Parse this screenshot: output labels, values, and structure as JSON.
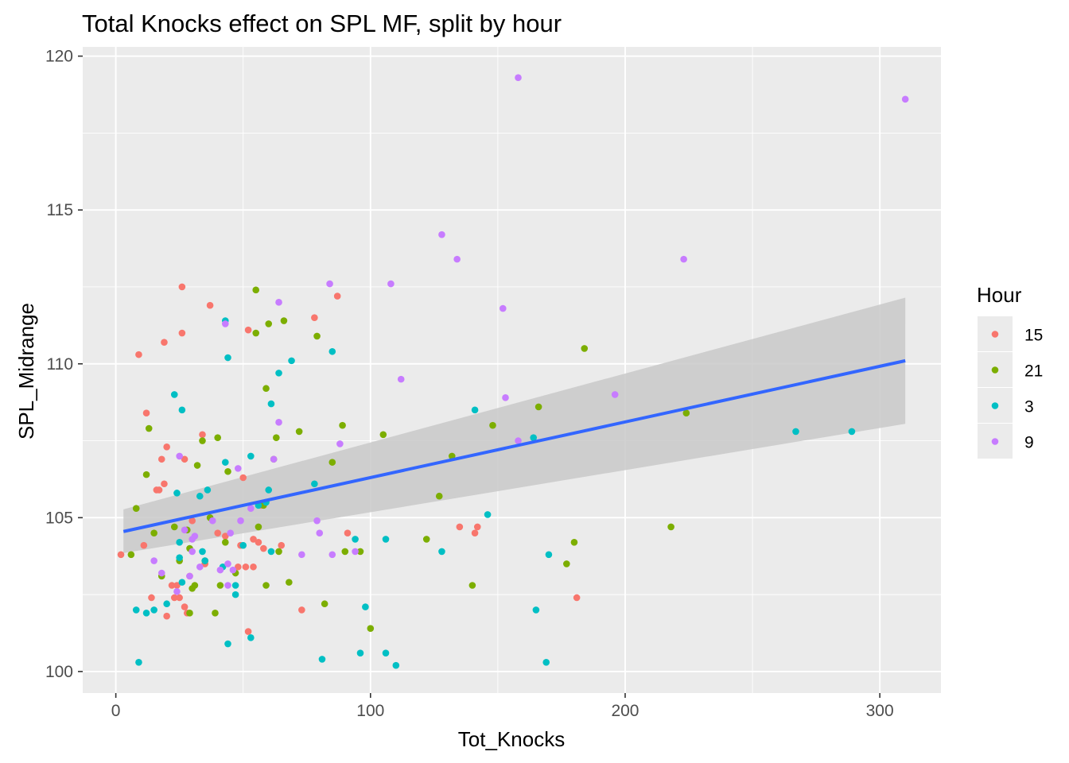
{
  "chart_data": {
    "type": "scatter",
    "title": "Total Knocks effect on SPL MF, split by hour",
    "xlabel": "Tot_Knocks",
    "ylabel": "SPL_Midrange",
    "xlim": [
      -13,
      324
    ],
    "ylim": [
      99.3,
      120.3
    ],
    "x_ticks": [
      0,
      100,
      200,
      300
    ],
    "y_ticks": [
      100,
      105,
      110,
      115,
      120
    ],
    "grid": true,
    "legend": {
      "title": "Hour",
      "position": "right"
    },
    "colors": {
      "15": "#F8766D",
      "21": "#7CAE00",
      "3": "#00BFC4",
      "9": "#C77CFF"
    },
    "panel_background": "#EBEBEB",
    "grid_color": "#FFFFFF",
    "trend_color": "#3366FF",
    "ribbon_color": "#C9C9C9",
    "trend": {
      "method": "linear",
      "x": [
        3,
        310
      ],
      "y": [
        104.55,
        110.1
      ],
      "ci_lower": [
        103.85,
        108.05
      ],
      "ci_upper": [
        105.27,
        112.15
      ]
    },
    "series": [
      {
        "name": "15",
        "points": [
          [
            2,
            103.8
          ],
          [
            9,
            110.3
          ],
          [
            11,
            104.1
          ],
          [
            12,
            108.4
          ],
          [
            14,
            102.4
          ],
          [
            16,
            105.9
          ],
          [
            17,
            105.9
          ],
          [
            18,
            106.9
          ],
          [
            19,
            110.7
          ],
          [
            19,
            106.1
          ],
          [
            20,
            107.3
          ],
          [
            20,
            101.8
          ],
          [
            22,
            102.8
          ],
          [
            23,
            102.4
          ],
          [
            24,
            102.8
          ],
          [
            25,
            102.4
          ],
          [
            26,
            112.5
          ],
          [
            26,
            111.0
          ],
          [
            27,
            106.9
          ],
          [
            27,
            102.1
          ],
          [
            28,
            101.9
          ],
          [
            29,
            103.1
          ],
          [
            30,
            104.9
          ],
          [
            34,
            107.7
          ],
          [
            35,
            103.5
          ],
          [
            37,
            111.9
          ],
          [
            40,
            104.5
          ],
          [
            43,
            104.4
          ],
          [
            48,
            103.4
          ],
          [
            49,
            104.1
          ],
          [
            50,
            106.3
          ],
          [
            51,
            103.4
          ],
          [
            52,
            101.3
          ],
          [
            52,
            111.1
          ],
          [
            54,
            104.3
          ],
          [
            54,
            103.4
          ],
          [
            56,
            104.2
          ],
          [
            57,
            105.4
          ],
          [
            58,
            104.0
          ],
          [
            65,
            104.1
          ],
          [
            73,
            102.0
          ],
          [
            78,
            111.5
          ],
          [
            87,
            112.2
          ],
          [
            91,
            104.5
          ],
          [
            135,
            104.7
          ],
          [
            141,
            104.5
          ],
          [
            142,
            104.7
          ],
          [
            181,
            102.4
          ]
        ]
      },
      {
        "name": "21",
        "points": [
          [
            6,
            103.8
          ],
          [
            8,
            105.3
          ],
          [
            12,
            106.4
          ],
          [
            13,
            107.9
          ],
          [
            15,
            104.5
          ],
          [
            18,
            103.1
          ],
          [
            23,
            104.7
          ],
          [
            25,
            103.6
          ],
          [
            28,
            104.6
          ],
          [
            29,
            104.0
          ],
          [
            29,
            101.9
          ],
          [
            30,
            102.7
          ],
          [
            31,
            102.8
          ],
          [
            32,
            106.7
          ],
          [
            34,
            107.5
          ],
          [
            35,
            103.6
          ],
          [
            37,
            105.0
          ],
          [
            39,
            101.9
          ],
          [
            40,
            107.6
          ],
          [
            41,
            102.8
          ],
          [
            43,
            104.2
          ],
          [
            44,
            106.5
          ],
          [
            47,
            103.2
          ],
          [
            55,
            112.4
          ],
          [
            55,
            111.0
          ],
          [
            56,
            104.7
          ],
          [
            58,
            105.4
          ],
          [
            59,
            102.8
          ],
          [
            59,
            109.2
          ],
          [
            60,
            111.3
          ],
          [
            62,
            106.9
          ],
          [
            63,
            107.6
          ],
          [
            64,
            103.9
          ],
          [
            66,
            111.4
          ],
          [
            68,
            102.9
          ],
          [
            72,
            107.8
          ],
          [
            79,
            110.9
          ],
          [
            82,
            102.2
          ],
          [
            85,
            106.8
          ],
          [
            89,
            108.0
          ],
          [
            90,
            103.9
          ],
          [
            96,
            103.9
          ],
          [
            100,
            101.4
          ],
          [
            105,
            107.7
          ],
          [
            122,
            104.3
          ],
          [
            127,
            105.7
          ],
          [
            132,
            107.0
          ],
          [
            140,
            102.8
          ],
          [
            148,
            108.0
          ],
          [
            166,
            108.6
          ],
          [
            177,
            103.5
          ],
          [
            180,
            104.2
          ],
          [
            184,
            110.5
          ],
          [
            218,
            104.7
          ],
          [
            224,
            108.4
          ]
        ]
      },
      {
        "name": "3",
        "points": [
          [
            8,
            102.0
          ],
          [
            9,
            100.3
          ],
          [
            12,
            101.9
          ],
          [
            15,
            102.0
          ],
          [
            20,
            102.2
          ],
          [
            23,
            109.0
          ],
          [
            24,
            105.8
          ],
          [
            25,
            104.2
          ],
          [
            25,
            103.7
          ],
          [
            26,
            102.9
          ],
          [
            26,
            108.5
          ],
          [
            33,
            105.7
          ],
          [
            34,
            103.9
          ],
          [
            35,
            103.6
          ],
          [
            36,
            105.9
          ],
          [
            42,
            103.4
          ],
          [
            43,
            111.4
          ],
          [
            43,
            106.8
          ],
          [
            44,
            100.9
          ],
          [
            44,
            110.2
          ],
          [
            47,
            102.5
          ],
          [
            47,
            102.8
          ],
          [
            50,
            104.1
          ],
          [
            53,
            101.1
          ],
          [
            53,
            107.0
          ],
          [
            56,
            105.4
          ],
          [
            59,
            105.5
          ],
          [
            60,
            105.9
          ],
          [
            61,
            108.7
          ],
          [
            61,
            103.9
          ],
          [
            64,
            109.7
          ],
          [
            69,
            110.1
          ],
          [
            78,
            106.1
          ],
          [
            81,
            100.4
          ],
          [
            85,
            110.4
          ],
          [
            94,
            104.3
          ],
          [
            96,
            100.6
          ],
          [
            98,
            102.1
          ],
          [
            106,
            104.3
          ],
          [
            106,
            100.6
          ],
          [
            110,
            100.2
          ],
          [
            128,
            103.9
          ],
          [
            141,
            108.5
          ],
          [
            146,
            105.1
          ],
          [
            164,
            107.6
          ],
          [
            165,
            102.0
          ],
          [
            169,
            100.3
          ],
          [
            170,
            103.8
          ],
          [
            267,
            107.8
          ],
          [
            289,
            107.8
          ]
        ]
      },
      {
        "name": "9",
        "points": [
          [
            15,
            103.6
          ],
          [
            18,
            103.2
          ],
          [
            24,
            102.6
          ],
          [
            25,
            107.0
          ],
          [
            27,
            104.6
          ],
          [
            29,
            103.1
          ],
          [
            30,
            103.9
          ],
          [
            30,
            104.3
          ],
          [
            31,
            104.4
          ],
          [
            33,
            103.4
          ],
          [
            38,
            104.9
          ],
          [
            41,
            103.3
          ],
          [
            43,
            111.3
          ],
          [
            44,
            103.5
          ],
          [
            44,
            102.8
          ],
          [
            45,
            104.5
          ],
          [
            46,
            103.3
          ],
          [
            48,
            106.6
          ],
          [
            49,
            104.9
          ],
          [
            53,
            105.3
          ],
          [
            62,
            106.9
          ],
          [
            64,
            108.1
          ],
          [
            64,
            112.0
          ],
          [
            73,
            103.8
          ],
          [
            79,
            104.9
          ],
          [
            80,
            104.5
          ],
          [
            84,
            112.6
          ],
          [
            85,
            103.8
          ],
          [
            88,
            107.4
          ],
          [
            94,
            103.9
          ],
          [
            108,
            112.6
          ],
          [
            112,
            109.5
          ],
          [
            128,
            114.2
          ],
          [
            134,
            113.4
          ],
          [
            152,
            111.8
          ],
          [
            153,
            108.9
          ],
          [
            158,
            107.5
          ],
          [
            158,
            119.3
          ],
          [
            196,
            109.0
          ],
          [
            223,
            113.4
          ],
          [
            310,
            118.6
          ]
        ]
      }
    ]
  }
}
